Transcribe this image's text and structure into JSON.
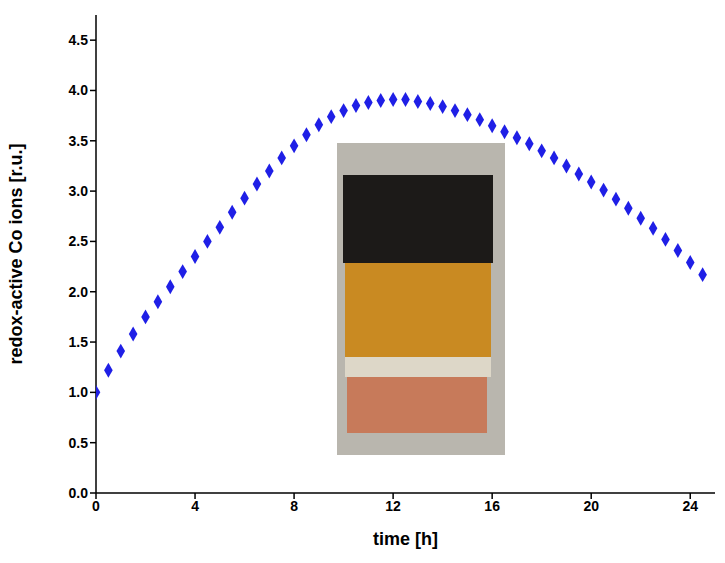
{
  "chart_data": {
    "type": "scatter",
    "x_label": "time [h]",
    "y_label": "redox-active Co ions [r.u.]",
    "x": [
      0,
      0.5,
      1,
      1.5,
      2,
      2.5,
      3,
      3.5,
      4,
      4.5,
      5,
      5.5,
      6,
      6.5,
      7,
      7.5,
      8,
      8.5,
      9,
      9.5,
      10,
      10.5,
      11,
      11.5,
      12,
      12.5,
      13,
      13.5,
      14,
      14.5,
      15,
      15.5,
      16,
      16.5,
      17,
      17.5,
      18,
      18.5,
      19,
      19.5,
      20,
      20.5,
      21,
      21.5,
      22,
      22.5,
      23,
      23.5,
      24,
      24.5
    ],
    "values": [
      1.0,
      1.22,
      1.41,
      1.58,
      1.75,
      1.9,
      2.05,
      2.2,
      2.35,
      2.5,
      2.64,
      2.79,
      2.93,
      3.07,
      3.2,
      3.33,
      3.45,
      3.56,
      3.66,
      3.74,
      3.8,
      3.85,
      3.88,
      3.9,
      3.91,
      3.91,
      3.89,
      3.87,
      3.84,
      3.8,
      3.76,
      3.71,
      3.65,
      3.59,
      3.53,
      3.47,
      3.4,
      3.33,
      3.25,
      3.17,
      3.09,
      3.01,
      2.92,
      2.83,
      2.73,
      2.63,
      2.52,
      2.41,
      2.29,
      2.17
    ],
    "color": "#1f1fe6",
    "marker": "diamond",
    "xlim": [
      0,
      25
    ],
    "xticks": [
      0,
      4,
      8,
      12,
      16,
      20,
      24
    ],
    "ylim": [
      0,
      4.75
    ],
    "yticks": [
      {
        "value": 0,
        "label": "0.0"
      },
      0.5,
      {
        "value": 1,
        "label": "1.0"
      },
      1.5,
      {
        "value": 2,
        "label": "2.0"
      },
      2.5,
      {
        "value": 3,
        "label": "3.0"
      },
      3.5,
      {
        "value": 4,
        "label": "4.0"
      },
      4.5
    ],
    "grid": false
  }
}
